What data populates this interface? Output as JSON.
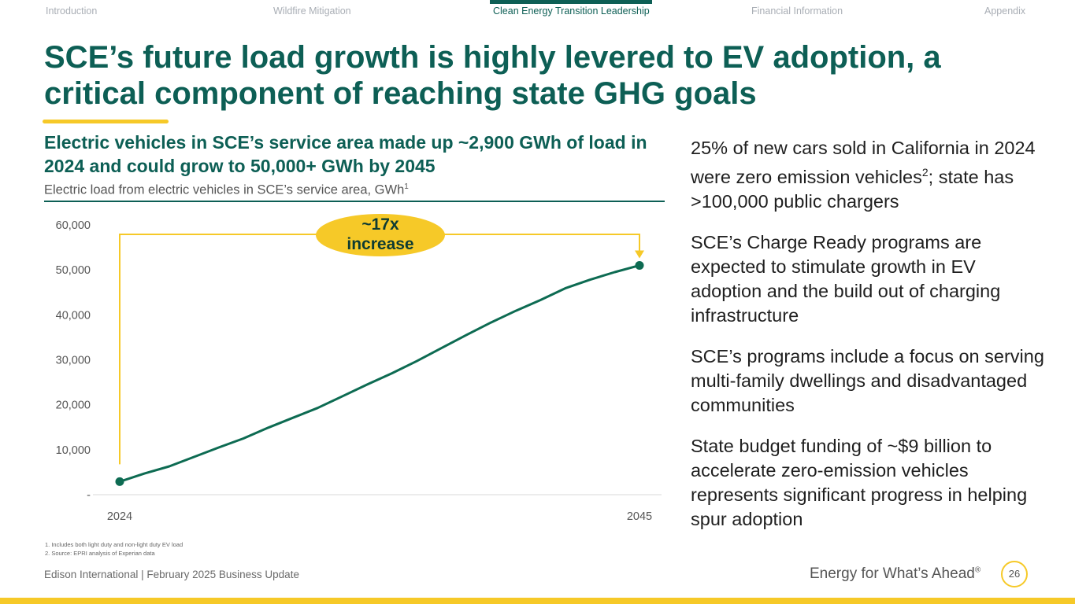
{
  "nav": {
    "tabs": [
      {
        "label": "Introduction"
      },
      {
        "label": "Wildfire Mitigation"
      },
      {
        "label": "Clean Energy Transition Leadership",
        "active": true
      },
      {
        "label": "Financial Information"
      },
      {
        "label": "Appendix"
      }
    ]
  },
  "title": "SCE’s future load growth is highly levered to EV adoption, a critical component of reaching state GHG goals",
  "chart_section": {
    "heading": "Electric vehicles in SCE’s service area made up ~2,900 GWh of load in 2024 and could grow to 50,000+ GWh by 2045",
    "subtitle": "Electric load from electric vehicles in SCE’s service area, GWh",
    "subtitle_sup": "1"
  },
  "chart_data": {
    "type": "line",
    "title": "Electric load from electric vehicles in SCE’s service area, GWh",
    "x": [
      2024,
      2025,
      2026,
      2027,
      2028,
      2029,
      2030,
      2031,
      2032,
      2033,
      2034,
      2035,
      2036,
      2037,
      2038,
      2039,
      2040,
      2041,
      2042,
      2043,
      2044,
      2045
    ],
    "series": [
      {
        "name": "EV load (GWh)",
        "values": [
          2900,
          4700,
          6300,
          8400,
          10500,
          12500,
          14900,
          17100,
          19300,
          21900,
          24500,
          27000,
          29700,
          32600,
          35500,
          38300,
          40900,
          43300,
          45900,
          47800,
          49500,
          51000
        ]
      }
    ],
    "x_tick_labels": [
      "2024",
      "2045"
    ],
    "y_tick_labels": [
      "-",
      "10,000",
      "20,000",
      "30,000",
      "40,000",
      "50,000",
      "60,000"
    ],
    "ylim": [
      0,
      60000
    ],
    "annotation": {
      "line1": "~17x",
      "line2": "increase"
    },
    "colors": {
      "line": "#0d6b52",
      "callout": "#f6c928",
      "bracket": "#f6c928"
    }
  },
  "bullets": [
    {
      "text": "25% of new cars sold in California in 2024 were zero emission vehicles",
      "sup": "2",
      "tail": "; state has >100,000 public chargers"
    },
    {
      "text": "SCE’s Charge Ready programs are expected to stimulate growth in EV adoption and the build out of charging infrastructure"
    },
    {
      "text": "SCE’s programs include a focus on serving multi-family dwellings and disadvantaged communities"
    },
    {
      "text": "State budget funding of ~$9 billion to accelerate zero-emission vehicles represents significant progress in helping spur adoption"
    }
  ],
  "footnotes": [
    "1.   Includes both light duty and non-light duty EV load",
    "2.   Source: EPRI analysis of Experian data"
  ],
  "footer": {
    "left": "Edison International |  February 2025 Business Update",
    "tagline": "Energy for What’s Ahead",
    "tagline_mark": "®",
    "page": "26"
  },
  "colors": {
    "brand": "#0d5f55",
    "accent": "#f6c928"
  }
}
